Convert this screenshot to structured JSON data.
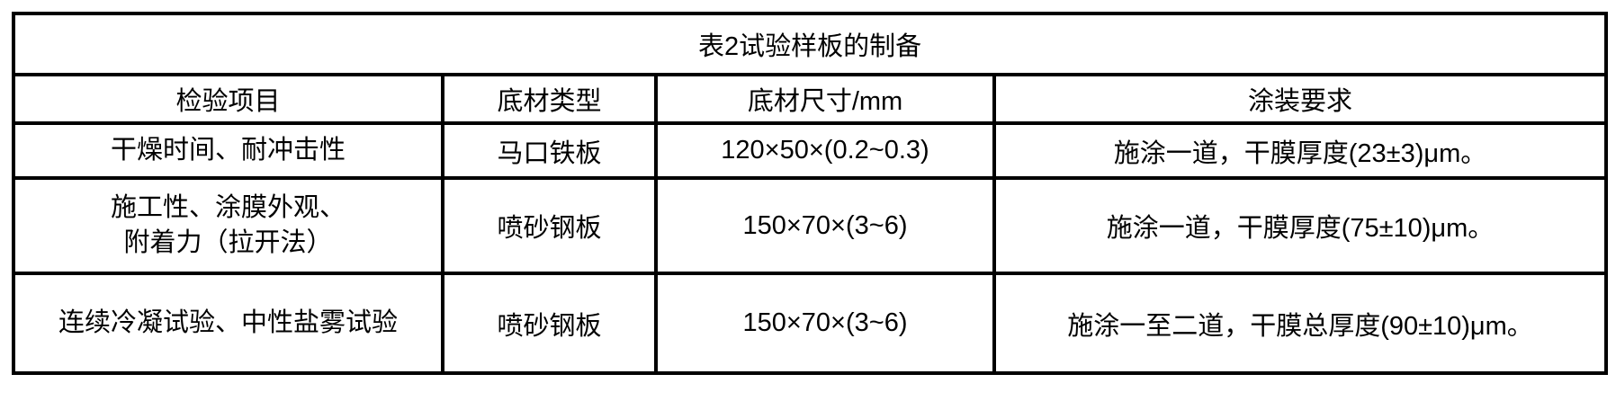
{
  "page": {
    "background_color": "#ffffff",
    "text_color": "#000000",
    "border_color": "#000000"
  },
  "table": {
    "title": "表2试验样板的制备",
    "headers": {
      "inspection_item": "检验项目",
      "substrate_type": "底材类型",
      "substrate_size": "底材尺寸/mm",
      "coating_requirement": "涂装要求"
    },
    "rows": [
      {
        "item": "干燥时间、耐冲击性",
        "substrate": "马口铁板",
        "size": "120×50×(0.2~0.3)",
        "coating": "施涂一道，干膜厚度(23±3)μm。"
      },
      {
        "item": "施工性、涂膜外观、\n附着力（拉开法）",
        "substrate": "喷砂钢板",
        "size": "150×70×(3~6)",
        "coating": "施涂一道，干膜厚度(75±10)μm。"
      },
      {
        "item": "连续冷凝试验、中性盐雾试验",
        "substrate": "喷砂钢板",
        "size": "150×70×(3~6)",
        "coating": "施涂一至二道，干膜总厚度(90±10)μm。"
      }
    ]
  }
}
